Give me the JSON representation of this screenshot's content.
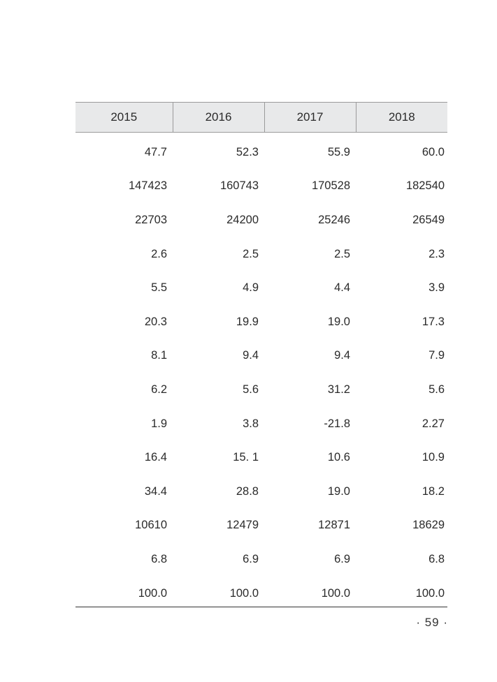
{
  "table": {
    "headers": [
      "2015",
      "2016",
      "2017",
      "2018"
    ],
    "rows": [
      [
        "47.7",
        "52.3",
        "55.9",
        "60.0"
      ],
      [
        "147423",
        "160743",
        "170528",
        "182540"
      ],
      [
        "22703",
        "24200",
        "25246",
        "26549"
      ],
      [
        "2.6",
        "2.5",
        "2.5",
        "2.3"
      ],
      [
        "5.5",
        "4.9",
        "4.4",
        "3.9"
      ],
      [
        "20.3",
        "19.9",
        "19.0",
        "17.3"
      ],
      [
        "8.1",
        "9.4",
        "9.4",
        "7.9"
      ],
      [
        "6.2",
        "5.6",
        "31.2",
        "5.6"
      ],
      [
        "1.9",
        "3.8",
        "-21.8",
        "2.27"
      ],
      [
        "16.4",
        "15. 1",
        "10.6",
        "10.9"
      ],
      [
        "34.4",
        "28.8",
        "19.0",
        "18.2"
      ],
      [
        "10610",
        "12479",
        "12871",
        "18629"
      ],
      [
        "6.8",
        "6.9",
        "6.9",
        "6.8"
      ],
      [
        "100.0",
        "100.0",
        "100.0",
        "100.0"
      ]
    ]
  },
  "footer": {
    "page_number": "· 59 ·"
  }
}
